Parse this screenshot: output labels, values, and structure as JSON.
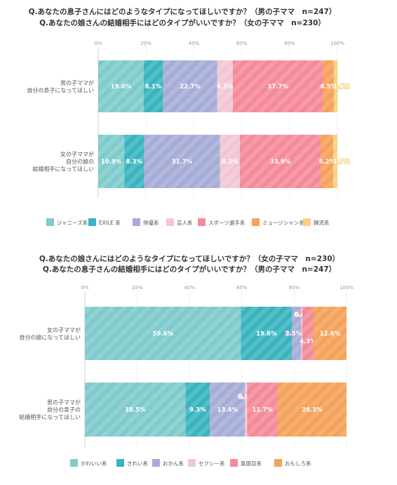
{
  "chart_data": [
    {
      "type": "bar",
      "stacked": true,
      "orientation": "horizontal",
      "title_lines": [
        "Q.あなたの息子さんにはどのようなタイプになってほしいですか？（男の子ママ　n=247）",
        "Q.あなたの娘さんの結婚相手にはどのタイプがいいですか？（女の子ママ　n=230）"
      ],
      "xlim": [
        0,
        100
      ],
      "ticks": [
        "0%",
        "20%",
        "40%",
        "60%",
        "80%",
        "100%"
      ],
      "grid": true,
      "legend_position": "bottom",
      "categories": [
        [
          "男の子ママが",
          "自分の息子になってほしい"
        ],
        [
          "女の子ママが",
          "自分の娘の",
          "結婚相手になってほしい"
        ]
      ],
      "series": [
        {
          "name": "ジャニーズ系",
          "color": "#7fcbcc",
          "values": [
            19.0,
            10.9
          ],
          "labels": [
            "19.0%",
            "10.9%"
          ]
        },
        {
          "name": "EXILE 系",
          "color": "#39b4bf",
          "values": [
            8.1,
            8.3
          ],
          "labels": [
            "8.1%",
            "8.3%"
          ]
        },
        {
          "name": "俳優系",
          "color": "#a7acd7",
          "values": [
            22.7,
            31.7
          ],
          "labels": [
            "22.7%",
            "31.7%"
          ]
        },
        {
          "name": "芸人系",
          "color": "#f2c7d3",
          "values": [
            6.5,
            8.3
          ],
          "labels": [
            "6.5%",
            "8.3%"
          ]
        },
        {
          "name": "スポーツ選手系",
          "color": "#f48a98",
          "values": [
            37.7,
            33.9
          ],
          "labels": [
            "37.7%",
            "33.9%"
          ]
        },
        {
          "name": "ミュージシャン系",
          "color": "#f5a25a",
          "values": [
            4.5,
            5.2
          ],
          "labels": [
            "4.5%",
            "5.2%"
          ]
        },
        {
          "name": "韓流系",
          "color": "#f6d27f",
          "values": [
            1.6,
            1.7
          ],
          "labels": [
            "1.6%",
            "1.7%"
          ]
        }
      ]
    },
    {
      "type": "bar",
      "stacked": true,
      "orientation": "horizontal",
      "title_lines": [
        "Q.あなたの娘さんにはどのようなタイプになってほしいですか？（女の子ママ　n=230）",
        "Q.あなたの息子さんの結婚相手にはどのタイプがいいですか？（男の子ママ　n=247）"
      ],
      "xlim": [
        0,
        100
      ],
      "ticks": [
        "0%",
        "20%",
        "40%",
        "60%",
        "80%",
        "100%"
      ],
      "grid": true,
      "legend_position": "bottom",
      "categories": [
        [
          "女の子ママが",
          "自分の娘になってほしい"
        ],
        [
          "男の子ママが",
          "自分の息子の",
          "結婚相手になってほしい"
        ]
      ],
      "series": [
        {
          "name": "かわいい系",
          "color": "#7fcbcc",
          "values": [
            59.6,
            38.5
          ],
          "labels": [
            "59.6%",
            "38.5%"
          ]
        },
        {
          "name": "きれい系",
          "color": "#39b4bf",
          "values": [
            19.6,
            9.3
          ],
          "labels": [
            "19.6%",
            "9.3%"
          ]
        },
        {
          "name": "おかん系",
          "color": "#a7acd7",
          "values": [
            3.5,
            13.4
          ],
          "labels": [
            "3.5%",
            "13.4%"
          ]
        },
        {
          "name": "セクシー系",
          "color": "#f2c7d3",
          "values": [
            0.4,
            0.8
          ],
          "labels": [
            "0.4%",
            "0.8%"
          ]
        },
        {
          "name": "真面目系",
          "color": "#f48a98",
          "values": [
            4.3,
            11.7
          ],
          "labels": [
            "4.3%",
            "11.7%"
          ]
        },
        {
          "name": "おもしろ系",
          "color": "#f5a25a",
          "values": [
            12.6,
            26.3
          ],
          "labels": [
            "12.6%",
            "26.3%"
          ]
        }
      ]
    }
  ]
}
